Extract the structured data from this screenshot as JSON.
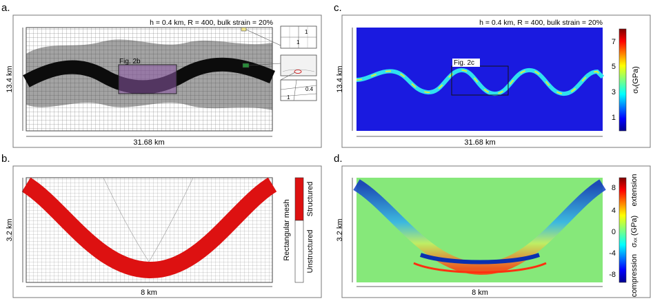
{
  "panels": {
    "a": {
      "letter": "a.",
      "header": "h = 0.4 km, R = 400, bulk strain = 20%",
      "height_label": "13.4 km",
      "width_label": "31.68 km",
      "zoom_label": "Fig. 2b",
      "inset_top": {
        "label_top": "1",
        "label_mid": "1"
      },
      "inset_bottom": {
        "label_a": "0.4",
        "label_b": "1"
      }
    },
    "b": {
      "letter": "b.",
      "height_label": "3.2 km",
      "width_label": "8 km",
      "legend_title": "Rectangular mesh",
      "legend_top": "Structured",
      "legend_bottom": "Unstructured",
      "legend_top_color": "#dd1111",
      "legend_bottom_color": "#ffffff"
    },
    "c": {
      "letter": "c.",
      "header": "h = 0.4 km, R = 400, bulk strain = 20%",
      "height_label": "13.4 km",
      "width_label": "31.68 km",
      "zoom_label": "Fig. 2c",
      "colorbar_title": "σᵥ(GPa)",
      "ticks": [
        "7",
        "5",
        "3",
        "1"
      ]
    },
    "d": {
      "letter": "d.",
      "height_label": "3.2 km",
      "width_label": "8 km",
      "colorbar_title": "σₓₓ (GPa)",
      "ticks": [
        "8",
        "4",
        "0",
        "-4",
        "-8"
      ],
      "label_extension": "extension",
      "label_compression": "compression"
    }
  },
  "colors": {
    "mesh_red": "#dd1111",
    "field_blue": "#1a1ae0",
    "field_green": "#86e87a",
    "zoom_purple": "#8e5aa8"
  }
}
